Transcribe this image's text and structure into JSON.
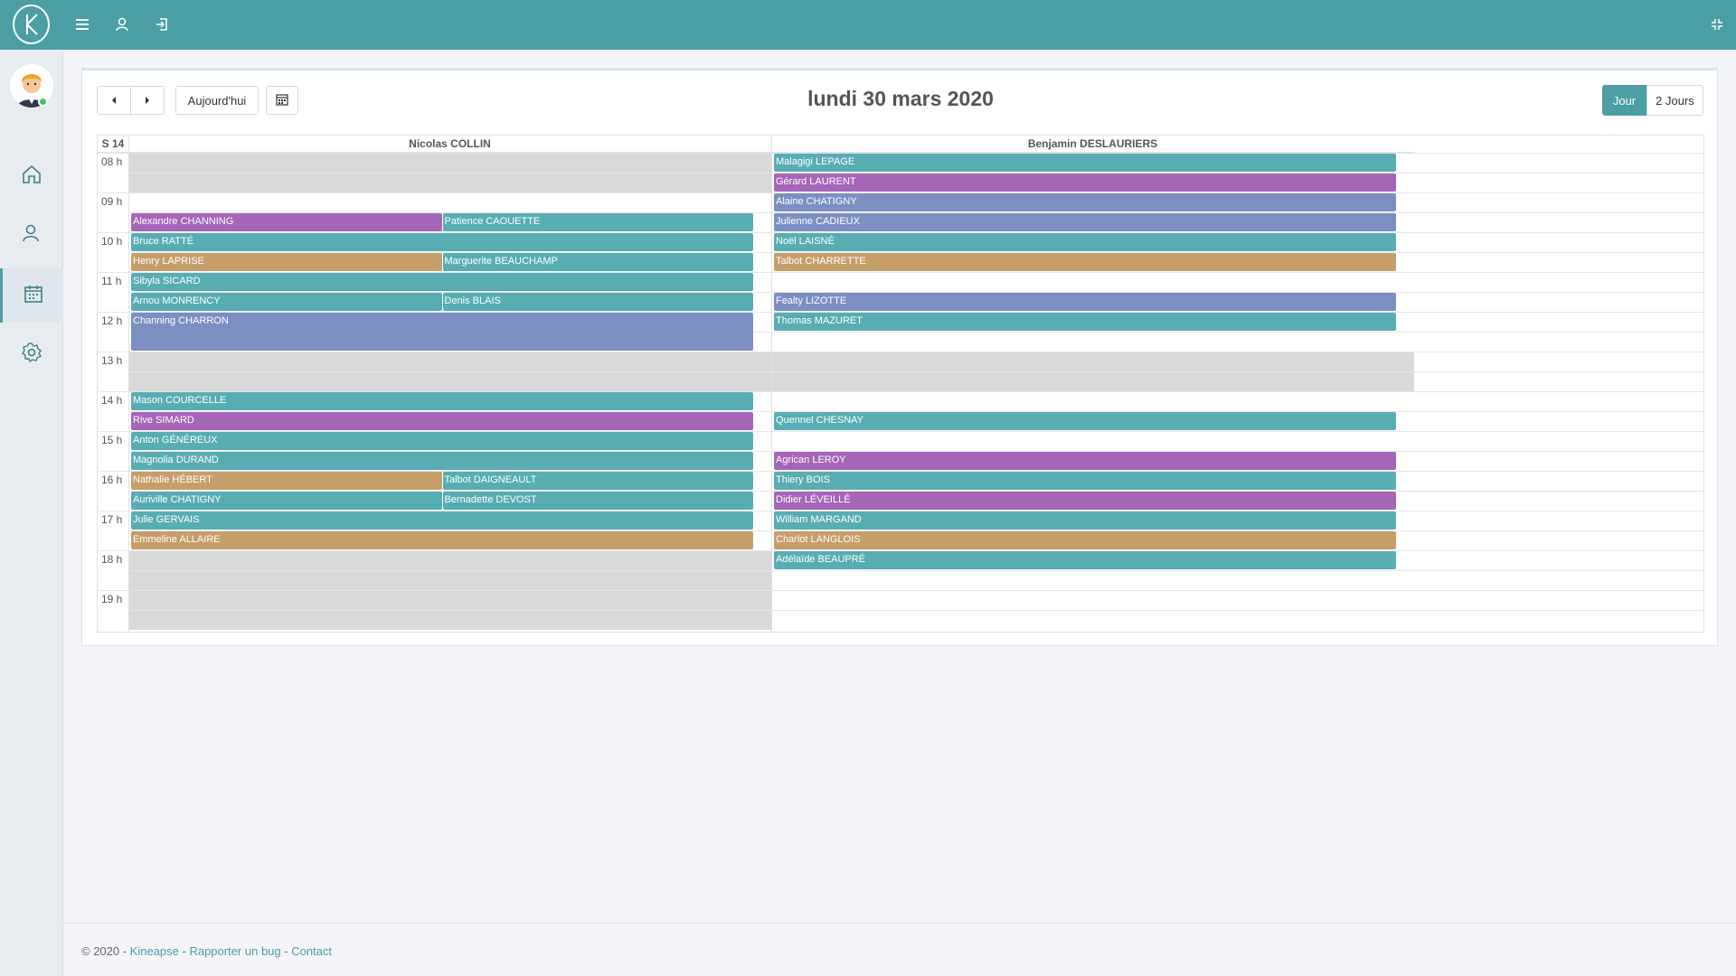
{
  "colors": {
    "teal": "#58adb3",
    "purple": "#a566b8",
    "blue": "#7c8fc3",
    "tan": "#c69e6a",
    "brand": "#4a9ea4"
  },
  "toolbar": {
    "today_label": "Aujourd'hui",
    "title": "lundi 30 mars 2020",
    "view_day": "Jour",
    "view_two_days": "2 Jours"
  },
  "calendar": {
    "week_label": "S 14",
    "hours": [
      "08 h",
      "09 h",
      "10 h",
      "11 h",
      "12 h",
      "13 h",
      "14 h",
      "15 h",
      "16 h",
      "17 h",
      "18 h",
      "19 h"
    ],
    "columns": [
      {
        "name": "Nicolas COLLIN",
        "blocked": [
          {
            "start": "08:00",
            "end": "09:00"
          },
          {
            "start": "13:00",
            "end": "14:00"
          },
          {
            "start": "18:00",
            "end": "20:00"
          }
        ],
        "events": [
          {
            "name": "Alexandre CHANNING",
            "start": "09:30",
            "end": "10:00",
            "color": "purple",
            "lane": 0,
            "lanes": 2
          },
          {
            "name": "Patience CAOUETTE",
            "start": "09:30",
            "end": "10:00",
            "color": "teal",
            "lane": 1,
            "lanes": 2
          },
          {
            "name": "Bruce RATTÉ",
            "start": "10:00",
            "end": "10:30",
            "color": "teal",
            "lane": 0,
            "lanes": 1
          },
          {
            "name": "Henry LAPRISE",
            "start": "10:30",
            "end": "11:00",
            "color": "tan",
            "lane": 0,
            "lanes": 2
          },
          {
            "name": "Marguerite BEAUCHAMP",
            "start": "10:30",
            "end": "11:00",
            "color": "teal",
            "lane": 1,
            "lanes": 2
          },
          {
            "name": "Sibyla SICARD",
            "start": "11:00",
            "end": "11:30",
            "color": "teal",
            "lane": 0,
            "lanes": 1
          },
          {
            "name": "Arnou MONRENCY",
            "start": "11:30",
            "end": "12:00",
            "color": "teal",
            "lane": 0,
            "lanes": 2
          },
          {
            "name": "Denis BLAIS",
            "start": "11:30",
            "end": "12:00",
            "color": "teal",
            "lane": 1,
            "lanes": 2
          },
          {
            "name": "Channing CHARRON",
            "start": "12:00",
            "end": "13:00",
            "color": "blue",
            "lane": 0,
            "lanes": 1
          },
          {
            "name": "Mason COURCELLE",
            "start": "14:00",
            "end": "14:30",
            "color": "teal",
            "lane": 0,
            "lanes": 1
          },
          {
            "name": "Rive SIMARD",
            "start": "14:30",
            "end": "15:00",
            "color": "purple",
            "lane": 0,
            "lanes": 1
          },
          {
            "name": "Anton GÉNÉREUX",
            "start": "15:00",
            "end": "15:30",
            "color": "teal",
            "lane": 0,
            "lanes": 1
          },
          {
            "name": "Magnolia DURAND",
            "start": "15:30",
            "end": "16:00",
            "color": "teal",
            "lane": 0,
            "lanes": 1
          },
          {
            "name": "Nathalie HÉBERT",
            "start": "16:00",
            "end": "16:30",
            "color": "tan",
            "lane": 0,
            "lanes": 2
          },
          {
            "name": "Talbot DAIGNEAULT",
            "start": "16:00",
            "end": "16:30",
            "color": "teal",
            "lane": 1,
            "lanes": 2
          },
          {
            "name": "Auriville CHATIGNY",
            "start": "16:30",
            "end": "17:00",
            "color": "teal",
            "lane": 0,
            "lanes": 2
          },
          {
            "name": "Bernadette DEVOST",
            "start": "16:30",
            "end": "17:00",
            "color": "teal",
            "lane": 1,
            "lanes": 2
          },
          {
            "name": "Julie GERVAIS",
            "start": "17:00",
            "end": "17:30",
            "color": "teal",
            "lane": 0,
            "lanes": 1
          },
          {
            "name": "Emmeline ALLAIRE",
            "start": "17:30",
            "end": "18:00",
            "color": "tan",
            "lane": 0,
            "lanes": 1
          }
        ]
      },
      {
        "name": "Benjamin DESLAURIERS",
        "blocked": [
          {
            "start": "13:00",
            "end": "14:00"
          }
        ],
        "events": [
          {
            "name": "Malagigi LEPAGE",
            "start": "08:00",
            "end": "08:30",
            "color": "teal",
            "lane": 0,
            "lanes": 1
          },
          {
            "name": "Gérard LAURENT",
            "start": "08:30",
            "end": "09:00",
            "color": "purple",
            "lane": 0,
            "lanes": 1
          },
          {
            "name": "Alaine CHATIGNY",
            "start": "09:00",
            "end": "09:30",
            "color": "blue",
            "lane": 0,
            "lanes": 1
          },
          {
            "name": "Julienne CADIEUX",
            "start": "09:30",
            "end": "10:00",
            "color": "blue",
            "lane": 0,
            "lanes": 1
          },
          {
            "name": "Noël LAISNÉ",
            "start": "10:00",
            "end": "10:30",
            "color": "teal",
            "lane": 0,
            "lanes": 1
          },
          {
            "name": "Talbot CHARRETTE",
            "start": "10:30",
            "end": "11:00",
            "color": "tan",
            "lane": 0,
            "lanes": 1
          },
          {
            "name": "Fealty LIZOTTE",
            "start": "11:30",
            "end": "12:00",
            "color": "blue",
            "lane": 0,
            "lanes": 1
          },
          {
            "name": "Thomas MAZURET",
            "start": "12:00",
            "end": "12:30",
            "color": "teal",
            "lane": 0,
            "lanes": 1
          },
          {
            "name": "Quennel CHESNAY",
            "start": "14:30",
            "end": "15:00",
            "color": "teal",
            "lane": 0,
            "lanes": 1
          },
          {
            "name": "Agrican LEROY",
            "start": "15:30",
            "end": "16:00",
            "color": "purple",
            "lane": 0,
            "lanes": 1
          },
          {
            "name": "Thiery BOIS",
            "start": "16:00",
            "end": "16:30",
            "color": "teal",
            "lane": 0,
            "lanes": 1
          },
          {
            "name": "Didier LÉVEILLÉ",
            "start": "16:30",
            "end": "17:00",
            "color": "purple",
            "lane": 0,
            "lanes": 1
          },
          {
            "name": "William MARGAND",
            "start": "17:00",
            "end": "17:30",
            "color": "teal",
            "lane": 0,
            "lanes": 1
          },
          {
            "name": "Charlot LANGLOIS",
            "start": "17:30",
            "end": "18:00",
            "color": "tan",
            "lane": 0,
            "lanes": 1
          },
          {
            "name": "Adélaïde BEAUPRÉ",
            "start": "18:00",
            "end": "18:30",
            "color": "teal",
            "lane": 0,
            "lanes": 1
          }
        ]
      }
    ]
  },
  "footer": {
    "copyright": "© 2020 - ",
    "brand_link": "Kineapse",
    "sep1": " - ",
    "bug_link": "Rapporter un bug",
    "sep2": " - ",
    "contact_link": "Contact"
  }
}
